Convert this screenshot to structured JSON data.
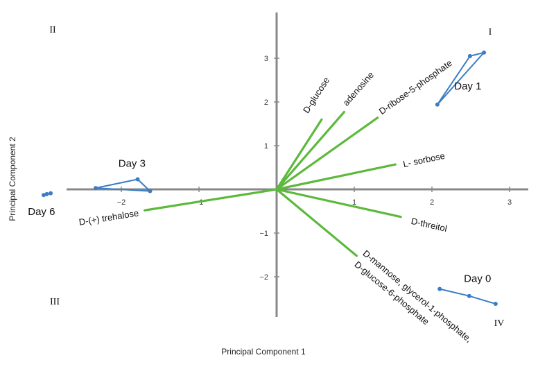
{
  "chart_data": {
    "type": "scatter",
    "subtype": "pca-biplot",
    "xlabel": "Principal Component 1",
    "ylabel": "Principal Component 2",
    "xlim": [
      -3.1,
      3.6
    ],
    "ylim": [
      -2.9,
      4.2
    ],
    "xticks": [
      -2,
      -1,
      1,
      2,
      3
    ],
    "yticks": [
      -2,
      -1,
      1,
      2,
      3
    ],
    "tick_labels": {
      "x": [
        "−2",
        "−1",
        "1",
        "2",
        "3"
      ],
      "y": [
        "−2",
        "−1",
        "1",
        "2",
        "3"
      ]
    },
    "quadrants": [
      "I",
      "II",
      "III",
      "IV"
    ],
    "loadings": [
      {
        "label": "D-glucose",
        "x": 0.58,
        "y": 1.6
      },
      {
        "label": "adenosine",
        "x": 0.87,
        "y": 1.77
      },
      {
        "label": "D-ribose-5-phosphate",
        "x": 1.3,
        "y": 1.64
      },
      {
        "label": "L- sorbose",
        "x": 1.53,
        "y": 0.57
      },
      {
        "label": "D-threitol",
        "x": 1.6,
        "y": -0.63
      },
      {
        "label": "D-mannose, glycerol-1-phosphate,",
        "x": 1.03,
        "y": -1.52
      },
      {
        "label": "D-glucose-6-phosphate",
        "x": 1.03,
        "y": -1.52
      },
      {
        "label": "D-(+) trehalose",
        "x": -1.7,
        "y": -0.48
      }
    ],
    "groups": [
      {
        "name": "Day 0",
        "points": [
          [
            2.1,
            -2.28
          ],
          [
            2.48,
            -2.44
          ],
          [
            2.82,
            -2.62
          ]
        ],
        "closed": false
      },
      {
        "name": "Day 1",
        "points": [
          [
            2.07,
            1.94
          ],
          [
            2.49,
            3.05
          ],
          [
            2.67,
            3.13
          ]
        ],
        "closed": true
      },
      {
        "name": "Day 3",
        "points": [
          [
            -2.33,
            0.03
          ],
          [
            -1.79,
            0.23
          ],
          [
            -1.63,
            -0.04
          ]
        ],
        "closed": true
      },
      {
        "name": "Day 6",
        "points": [
          [
            -3.0,
            -0.13
          ],
          [
            -2.96,
            -0.11
          ],
          [
            -2.91,
            -0.09
          ]
        ],
        "closed": false
      }
    ],
    "colors": {
      "loadings": "#5cb93c",
      "scores": "#3b7dc4",
      "axes": "#888888"
    },
    "grid": false
  }
}
